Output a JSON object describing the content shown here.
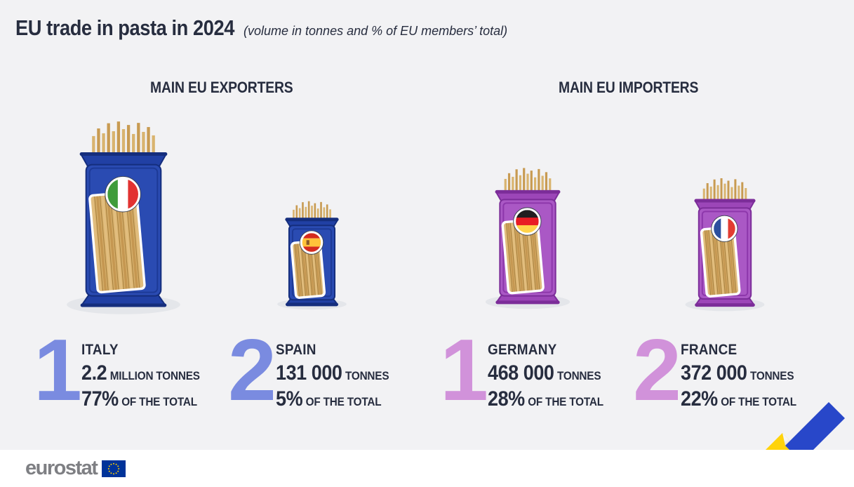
{
  "title": "EU trade in pasta in 2024",
  "subtitle": "(volume in tonnes and % of EU members’ total)",
  "sections": {
    "exporters_label": "MAIN EU EXPORTERS",
    "importers_label": "MAIN EU IMPORTERS"
  },
  "entries": [
    {
      "id": "italy",
      "group": "exporters",
      "rank": "1",
      "country": "ITALY",
      "volume_value": "2.2",
      "volume_unit": "MILLION TONNES",
      "share_value": "77%",
      "share_unit": "OF THE TOTAL",
      "flag": "italy",
      "package_color": "blue"
    },
    {
      "id": "spain",
      "group": "exporters",
      "rank": "2",
      "country": "SPAIN",
      "volume_value": "131 000",
      "volume_unit": "TONNES",
      "share_value": "5%",
      "share_unit": "OF THE TOTAL",
      "flag": "spain",
      "package_color": "blue"
    },
    {
      "id": "germany",
      "group": "importers",
      "rank": "1",
      "country": "GERMANY",
      "volume_value": "468 000",
      "volume_unit": "TONNES",
      "share_value": "28%",
      "share_unit": "OF THE TOTAL",
      "flag": "germany",
      "package_color": "purple"
    },
    {
      "id": "france",
      "group": "importers",
      "rank": "2",
      "country": "FRANCE",
      "volume_value": "372 000",
      "volume_unit": "TONNES",
      "share_value": "22%",
      "share_unit": "OF THE TOTAL",
      "flag": "france",
      "package_color": "purple"
    }
  ],
  "footer": {
    "logo_text": "eurostat"
  },
  "colors": {
    "background": "#f2f2f4",
    "text_dark": "#272d3f",
    "exporter_accent": "#7a8be0",
    "importer_accent": "#d192da",
    "package_blue": "#2a4bb2",
    "package_purple": "#aa58c5",
    "pasta_tan": "#d9b46f",
    "ribbon_blue": "#2847c9",
    "ribbon_yellow": "#ffd30a",
    "eu_flag_blue": "#003399",
    "eu_star_gold": "#ffcc00",
    "logo_gray": "#7e7f83"
  },
  "chart_data": {
    "type": "bar",
    "title": "EU trade in pasta in 2024",
    "subtitle": "(volume in tonnes and % of EU members’ total)",
    "note": "pictogram infographic; package size proportional to volume",
    "groups": [
      {
        "name": "MAIN EU EXPORTERS",
        "categories": [
          "ITALY",
          "SPAIN"
        ],
        "values_tonnes": [
          2200000,
          131000
        ],
        "share_pct_of_eu_total": [
          77,
          5
        ],
        "ranks": [
          1,
          2
        ]
      },
      {
        "name": "MAIN EU IMPORTERS",
        "categories": [
          "GERMANY",
          "FRANCE"
        ],
        "values_tonnes": [
          468000,
          372000
        ],
        "share_pct_of_eu_total": [
          28,
          22
        ],
        "ranks": [
          1,
          2
        ]
      }
    ],
    "legend_position": "none",
    "grid": false
  }
}
